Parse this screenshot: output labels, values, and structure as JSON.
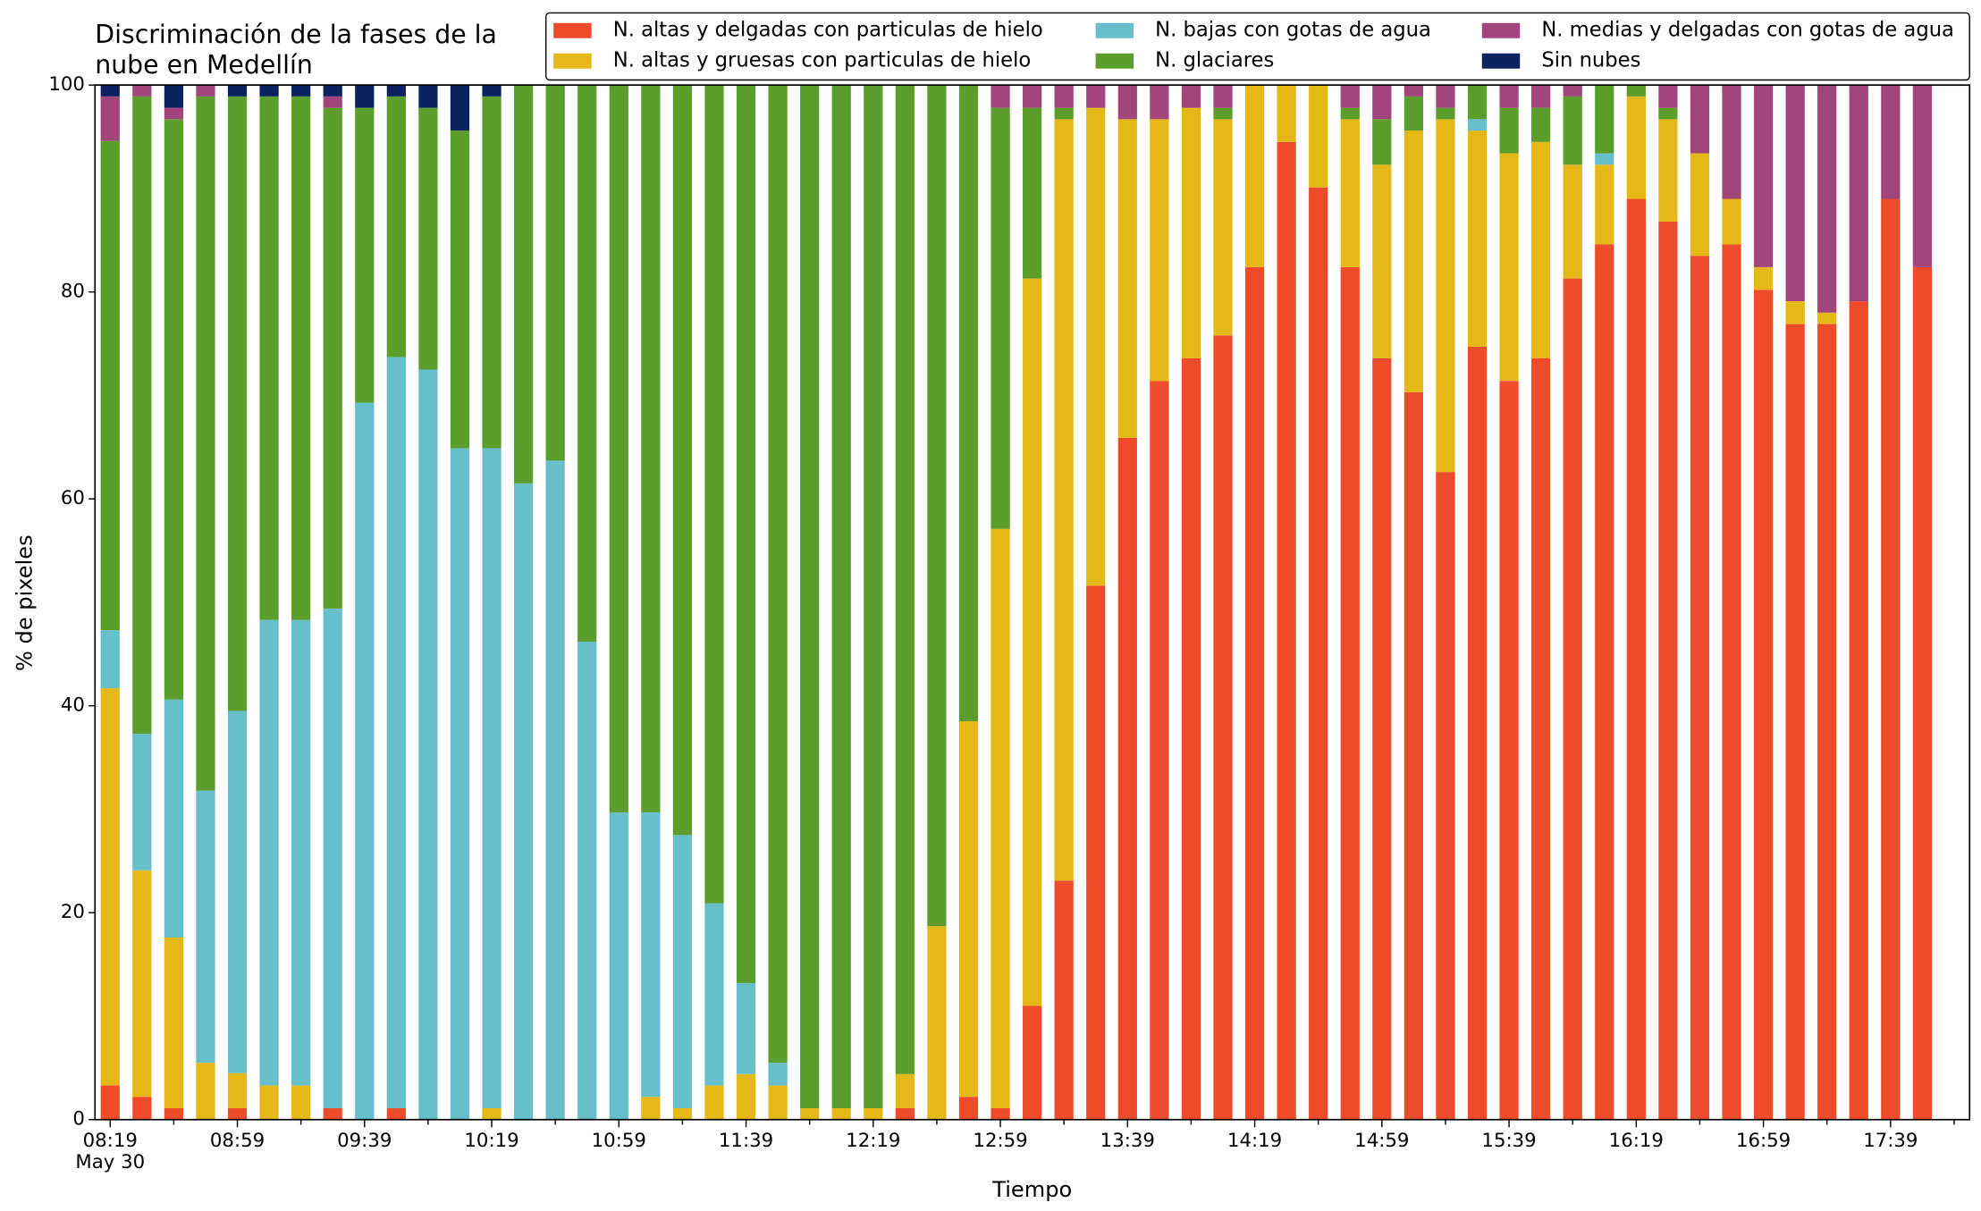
{
  "chart_data": {
    "type": "stacked_bar",
    "title": [
      "Discriminación de la fases de la",
      "nube en Medellín"
    ],
    "xlabel": "Tiempo",
    "ylabel": "% de pixeles",
    "date_label": "May 30",
    "categories": [
      "08:19",
      null,
      null,
      null,
      "08:59",
      null,
      null,
      null,
      "09:39",
      null,
      null,
      null,
      "10:19",
      null,
      null,
      null,
      "10:59",
      null,
      null,
      null,
      "11:39",
      null,
      null,
      null,
      "12:19",
      null,
      null,
      null,
      "12:59",
      null,
      null,
      null,
      "13:39",
      null,
      null,
      null,
      "14:19",
      null,
      null,
      null,
      "14:59",
      null,
      null,
      null,
      "15:39",
      null,
      null,
      null,
      "16:19",
      null,
      null,
      null,
      "16:59",
      null,
      null,
      null,
      "17:39",
      null
    ],
    "series": [
      {
        "name": "N. altas y delgadas con particulas de hielo",
        "color": "#ee4b2b",
        "values": [
          3.3,
          2.2,
          1.1,
          0,
          1.1,
          0,
          0,
          1.1,
          0,
          1.1,
          0,
          0,
          0,
          0,
          0,
          0,
          0,
          0,
          0,
          0,
          0,
          0,
          0,
          0,
          0,
          1.1,
          0,
          2.2,
          1.1,
          11.0,
          23.1,
          51.6,
          65.9,
          71.4,
          73.6,
          75.8,
          82.4,
          94.5,
          90.1,
          82.4,
          73.6,
          70.3,
          62.6,
          74.7,
          71.4,
          73.6,
          81.3,
          84.6,
          89.0,
          86.8,
          83.5,
          84.6,
          80.2,
          76.9,
          76.9,
          79.1,
          89.0,
          82.4
        ]
      },
      {
        "name": "N. altas y gruesas con particulas de hielo",
        "color": "#e6b817",
        "values": [
          38.4,
          21.9,
          16.5,
          5.5,
          3.4,
          3.3,
          3.3,
          0,
          0,
          0,
          0,
          0,
          1.1,
          0,
          0,
          0,
          0,
          2.2,
          1.1,
          3.3,
          4.4,
          3.3,
          1.1,
          1.1,
          1.1,
          3.3,
          18.7,
          36.3,
          56.0,
          70.3,
          73.6,
          46.2,
          30.8,
          25.3,
          24.2,
          20.9,
          17.6,
          5.5,
          9.9,
          14.3,
          18.7,
          25.3,
          34.1,
          20.9,
          22.0,
          20.9,
          11.0,
          7.7,
          9.9,
          9.9,
          9.9,
          4.4,
          2.2,
          2.2,
          1.1,
          0,
          0,
          0
        ]
      },
      {
        "name": "N. bajas con gotas de agua",
        "color": "#66bfcb",
        "values": [
          5.6,
          13.2,
          23.0,
          26.3,
          35.0,
          45.0,
          45.0,
          48.3,
          69.3,
          72.6,
          72.5,
          64.9,
          63.8,
          61.5,
          63.7,
          46.2,
          29.7,
          27.5,
          26.4,
          17.6,
          8.8,
          2.2,
          0,
          0,
          0,
          0,
          0,
          0,
          0,
          0,
          0,
          0,
          0,
          0,
          0,
          0,
          0,
          0,
          0,
          0,
          0,
          0,
          0,
          1.1,
          0,
          0,
          0,
          1.1,
          0,
          0,
          0,
          0,
          0,
          0,
          0,
          0,
          0,
          0
        ]
      },
      {
        "name": "N. glaciares",
        "color": "#5c9e2c",
        "values": [
          47.3,
          61.6,
          56.1,
          67.1,
          59.4,
          50.6,
          50.6,
          48.4,
          28.5,
          25.2,
          25.3,
          30.7,
          34.0,
          38.5,
          36.3,
          53.8,
          70.3,
          70.3,
          72.5,
          79.1,
          86.8,
          94.5,
          98.9,
          98.9,
          98.9,
          95.6,
          81.3,
          61.5,
          40.7,
          16.5,
          1.1,
          0,
          0,
          0,
          0,
          1.1,
          0,
          0,
          0,
          1.1,
          4.4,
          3.3,
          1.1,
          3.3,
          4.4,
          3.3,
          6.6,
          6.6,
          1.1,
          1.1,
          0,
          0,
          0,
          0,
          0,
          0,
          0,
          0
        ]
      },
      {
        "name": "N. medias y delgadas con gotas de agua",
        "color": "#a3457d",
        "values": [
          4.3,
          1.1,
          1.1,
          1.1,
          0,
          0,
          0,
          1.1,
          0,
          0,
          0,
          0,
          0,
          0,
          0,
          0,
          0,
          0,
          0,
          0,
          0,
          0,
          0,
          0,
          0,
          0,
          0,
          0,
          2.2,
          2.2,
          2.2,
          2.2,
          3.3,
          3.3,
          2.2,
          2.2,
          0,
          0,
          0,
          2.2,
          3.3,
          1.1,
          2.2,
          0,
          2.2,
          2.2,
          1.1,
          0,
          0,
          2.2,
          6.6,
          11.0,
          17.6,
          20.9,
          22.0,
          20.9,
          11.0,
          17.6
        ]
      },
      {
        "name": "Sin nubes",
        "color": "#0b2361",
        "values": [
          1.1,
          0,
          2.2,
          0,
          1.1,
          1.1,
          1.1,
          1.1,
          2.2,
          1.1,
          2.2,
          4.4,
          1.1,
          0,
          0,
          0,
          0,
          0,
          0,
          0,
          0,
          0,
          0,
          0,
          0,
          0,
          0,
          0,
          0,
          0,
          0,
          0,
          0,
          0,
          0,
          0,
          0,
          0,
          0,
          0,
          0,
          0,
          0,
          0,
          0,
          0,
          0,
          0,
          0,
          0,
          0,
          0,
          0,
          0,
          0,
          0,
          0,
          0
        ]
      }
    ],
    "ylim": [
      0,
      100
    ],
    "yticks": [
      0,
      20,
      40,
      60,
      80,
      100
    ],
    "legend": "upper right"
  }
}
